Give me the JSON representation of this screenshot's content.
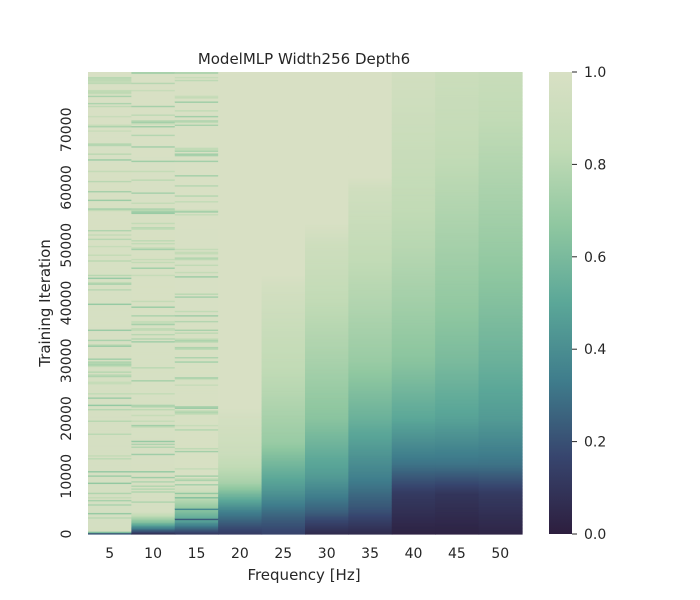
{
  "chart_data": {
    "type": "heatmap",
    "title": "ModelMLP Width256 Depth6",
    "xlabel": "Frequency [Hz]",
    "ylabel": "Training Iteration",
    "x_categories": [
      "5",
      "10",
      "15",
      "20",
      "25",
      "30",
      "35",
      "40",
      "45",
      "50"
    ],
    "x_values": [
      5,
      10,
      15,
      20,
      25,
      30,
      35,
      40,
      45,
      50
    ],
    "ylim": [
      0,
      80000
    ],
    "yticks": [
      "0",
      "10000",
      "20000",
      "30000",
      "40000",
      "50000",
      "60000",
      "70000"
    ],
    "colorbar": {
      "range": [
        0,
        1
      ],
      "ticks": [
        "0.0",
        "0.2",
        "0.4",
        "0.6",
        "0.8",
        "1.0"
      ],
      "colormap": [
        "#2d1e3e",
        "#37456e",
        "#3f7d8c",
        "#5ba798",
        "#8fc7a0",
        "#c2dbb6",
        "#d8e0c4"
      ]
    },
    "series": [
      {
        "x": 5,
        "curve": [
          [
            0,
            0.02
          ],
          [
            600,
            0.97
          ],
          [
            80000,
            1.0
          ]
        ],
        "stripes": true
      },
      {
        "x": 10,
        "curve": [
          [
            0,
            0.05
          ],
          [
            2000,
            0.6
          ],
          [
            4000,
            0.98
          ],
          [
            80000,
            1.0
          ]
        ],
        "stripes": true
      },
      {
        "x": 15,
        "curve": [
          [
            0,
            0.1
          ],
          [
            2500,
            0.5
          ],
          [
            7500,
            0.92
          ],
          [
            9000,
            0.99
          ],
          [
            80000,
            1.0
          ]
        ],
        "stripes": true
      },
      {
        "x": 20,
        "curve": [
          [
            0,
            0.12
          ],
          [
            4000,
            0.35
          ],
          [
            9000,
            0.75
          ],
          [
            14000,
            0.9
          ],
          [
            20000,
            0.96
          ],
          [
            22000,
            1.0
          ],
          [
            80000,
            1.0
          ]
        ],
        "stripes": false
      },
      {
        "x": 25,
        "curve": [
          [
            0,
            0.15
          ],
          [
            3000,
            0.25
          ],
          [
            8000,
            0.45
          ],
          [
            16000,
            0.7
          ],
          [
            25000,
            0.8
          ],
          [
            35000,
            0.88
          ],
          [
            43000,
            0.96
          ],
          [
            45000,
            1.0
          ],
          [
            80000,
            1.0
          ]
        ],
        "stripes": false
      },
      {
        "x": 30,
        "curve": [
          [
            0,
            0.05
          ],
          [
            4000,
            0.25
          ],
          [
            10000,
            0.45
          ],
          [
            20000,
            0.65
          ],
          [
            30000,
            0.75
          ],
          [
            40000,
            0.83
          ],
          [
            50000,
            0.92
          ],
          [
            54000,
            1.0
          ],
          [
            80000,
            1.0
          ]
        ],
        "stripes": false
      },
      {
        "x": 35,
        "curve": [
          [
            0,
            0.05
          ],
          [
            4000,
            0.2
          ],
          [
            10000,
            0.35
          ],
          [
            20000,
            0.55
          ],
          [
            30000,
            0.7
          ],
          [
            40000,
            0.78
          ],
          [
            50000,
            0.85
          ],
          [
            60000,
            0.94
          ],
          [
            62000,
            1.0
          ],
          [
            80000,
            1.0
          ]
        ],
        "stripes": false
      },
      {
        "x": 40,
        "curve": [
          [
            0,
            0.02
          ],
          [
            7000,
            0.12
          ],
          [
            12000,
            0.3
          ],
          [
            20000,
            0.5
          ],
          [
            30000,
            0.65
          ],
          [
            40000,
            0.73
          ],
          [
            50000,
            0.8
          ],
          [
            60000,
            0.85
          ],
          [
            70000,
            0.9
          ],
          [
            80000,
            0.95
          ]
        ],
        "stripes": false
      },
      {
        "x": 45,
        "curve": [
          [
            0,
            0.02
          ],
          [
            7000,
            0.1
          ],
          [
            12000,
            0.3
          ],
          [
            20000,
            0.48
          ],
          [
            30000,
            0.6
          ],
          [
            40000,
            0.68
          ],
          [
            50000,
            0.74
          ],
          [
            60000,
            0.8
          ],
          [
            70000,
            0.86
          ],
          [
            80000,
            0.9
          ]
        ],
        "stripes": false
      },
      {
        "x": 50,
        "curve": [
          [
            0,
            0.03
          ],
          [
            7000,
            0.12
          ],
          [
            12000,
            0.3
          ],
          [
            20000,
            0.45
          ],
          [
            30000,
            0.55
          ],
          [
            40000,
            0.63
          ],
          [
            50000,
            0.7
          ],
          [
            60000,
            0.76
          ],
          [
            70000,
            0.82
          ],
          [
            80000,
            0.88
          ]
        ],
        "stripes": false
      }
    ]
  }
}
